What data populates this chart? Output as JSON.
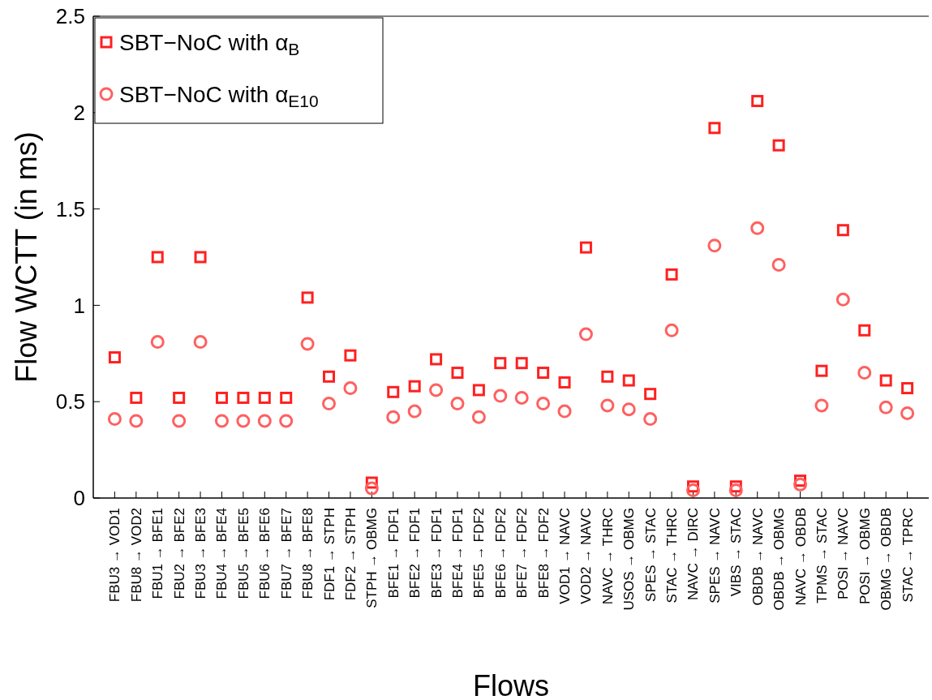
{
  "chart_data": {
    "type": "scatter",
    "xlabel": "Flows",
    "ylabel": "Flow WCTT (in ms)",
    "categories": [
      "FBU3 → VOD1",
      "FBU8 → VOD2",
      "FBU1 → BFE1",
      "FBU2 → BFE2",
      "FBU3 → BFE3",
      "FBU4 → BFE4",
      "FBU5 → BFE5",
      "FBU6 → BFE6",
      "FBU7 → BFE7",
      "FBU8 → BFE8",
      "FDF1 → STPH",
      "FDF2 → STPH",
      "STPH → OBMG",
      "BFE1 → FDF1",
      "BFE2 → FDF1",
      "BFE3 → FDF1",
      "BFE4 → FDF1",
      "BFE5 → FDF2",
      "BFE6 → FDF2",
      "BFE7 → FDF2",
      "BFE8 → FDF2",
      "VOD1 → NAVC",
      "VOD2 → NAVC",
      "NAVC → THRC",
      "USOS → OBMG",
      "SPES → STAC",
      "STAC → THRC",
      "NAVC → DIRC",
      "SPES → NAVC",
      "VIBS → STAC",
      "OBDB → NAVC",
      "OBDB → OBMG",
      "NAVC → OBDB",
      "TPMS → STAC",
      "POSI → NAVC",
      "POSI → OBMG",
      "OBMG → OBDB",
      "STAC → TPRC"
    ],
    "series": [
      {
        "name": "SBT−NoC with α$_{B}$",
        "color": "#ff2020",
        "marker": "square",
        "values": [
          0.73,
          0.52,
          1.25,
          0.52,
          1.25,
          0.52,
          0.52,
          0.52,
          0.52,
          1.04,
          0.63,
          0.74,
          0.08,
          0.55,
          0.58,
          0.72,
          0.65,
          0.56,
          0.7,
          0.7,
          0.65,
          0.6,
          1.3,
          0.63,
          0.61,
          0.54,
          1.16,
          0.06,
          1.92,
          0.06,
          2.06,
          1.83,
          0.09,
          0.66,
          1.39,
          0.87,
          0.61,
          0.57
        ]
      },
      {
        "name": "SBT−NoC with α$_{E10}$",
        "color": "#ff6060",
        "marker": "circle",
        "values": [
          0.41,
          0.4,
          0.81,
          0.4,
          0.81,
          0.4,
          0.4,
          0.4,
          0.4,
          0.8,
          0.49,
          0.57,
          0.05,
          0.42,
          0.45,
          0.56,
          0.49,
          0.42,
          0.53,
          0.52,
          0.49,
          0.45,
          0.85,
          0.48,
          0.46,
          0.41,
          0.87,
          0.04,
          1.31,
          0.04,
          1.4,
          1.21,
          0.07,
          0.48,
          1.03,
          0.65,
          0.47,
          0.44
        ]
      }
    ],
    "ylim": [
      0,
      2.5
    ],
    "yticks": [
      0,
      0.5,
      1,
      1.5,
      2,
      2.5
    ],
    "legend": "top left",
    "grid": false
  }
}
